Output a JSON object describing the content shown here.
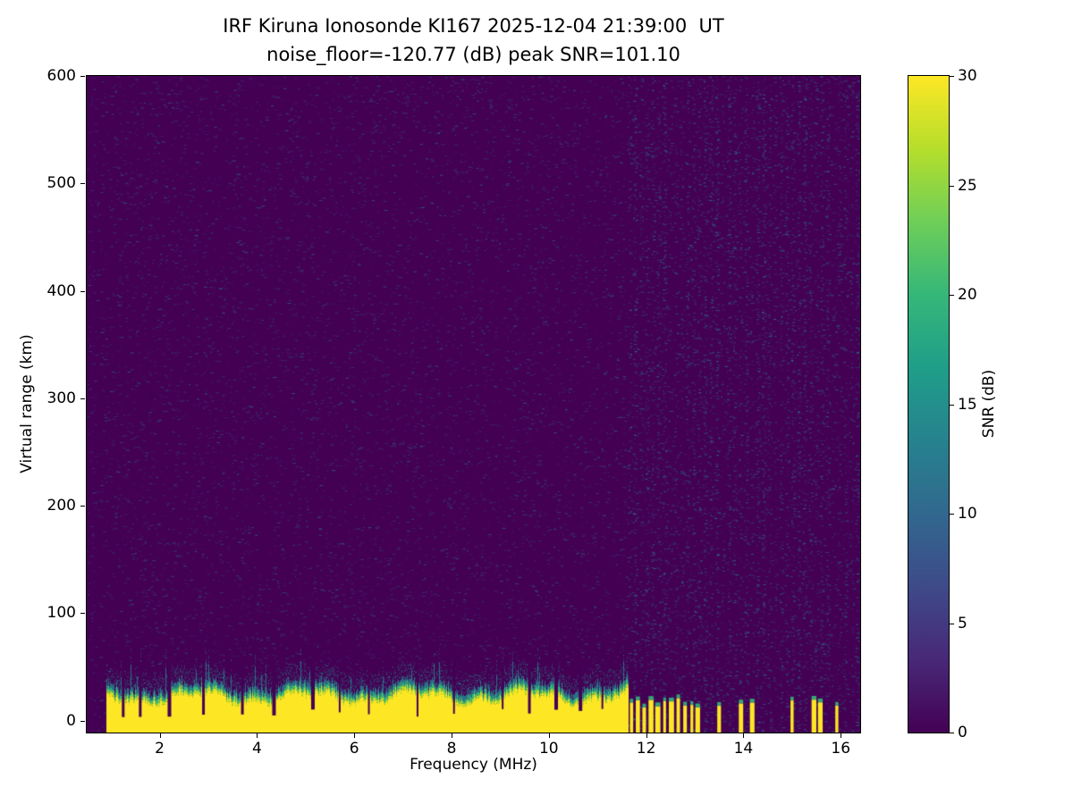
{
  "chart_data": {
    "type": "heatmap",
    "title": "IRF Kiruna Ionosonde KI167 2025-12-04 21:39:00  UT",
    "subtitle": "noise_floor=-120.77 (dB) peak SNR=101.10",
    "station": "IRF Kiruna Ionosonde KI167",
    "timestamp_ut": "2025-12-04 21:39:00",
    "noise_floor_db": -120.77,
    "peak_snr_db": 101.1,
    "xlabel": "Frequency (MHz)",
    "ylabel": "Virtual range (km)",
    "xlim": [
      0.5,
      16.4
    ],
    "ylim": [
      -11,
      600
    ],
    "xticks": [
      2,
      4,
      6,
      8,
      10,
      12,
      14,
      16
    ],
    "yticks": [
      0,
      100,
      200,
      300,
      400,
      500,
      600
    ],
    "grid": false,
    "colorbar": {
      "label": "SNR (dB)",
      "min": 0,
      "max": 30,
      "ticks": [
        0,
        5,
        10,
        15,
        20,
        25,
        30
      ],
      "colormap": "viridis",
      "stops_low_to_high": [
        "#440154",
        "#482878",
        "#3e4a89",
        "#31688e",
        "#26828e",
        "#1f9e89",
        "#35b779",
        "#6ece58",
        "#b5de2b",
        "#fde725"
      ]
    },
    "features": {
      "background_snr_db": 0,
      "speckle_noise": "sparse 1-8 dB blue/teal speckle noise over the entire map",
      "ground_echo_band": {
        "freq_start_mhz": 0.9,
        "freq_end_mhz": 11.62,
        "range_bottom_km": -11,
        "range_top_km_mean": 24,
        "fringe_top_km": 45,
        "snr_db": 30,
        "description": "saturated yellow strong-echo band at low virtual range with ragged green/teal upper fringe"
      },
      "band_notches_mhz": [
        1.25,
        1.6,
        2.2,
        2.9,
        3.7,
        4.35,
        5.15,
        5.7,
        6.3,
        7.3,
        8.05,
        9.05,
        9.6,
        10.15,
        10.65,
        11.1
      ],
      "sparse_echo_columns_mhz": [
        11.7,
        11.83,
        11.96,
        12.1,
        12.24,
        12.38,
        12.52,
        12.66,
        12.8,
        12.94,
        13.06,
        13.5,
        13.95,
        14.18,
        15.0,
        15.45,
        15.58,
        15.92
      ],
      "noise_stripes": {
        "freq_start": 11.65,
        "freq_end": 16.35,
        "spacing_mhz": 0.12,
        "description": "vertical columns of denser speckle noise above ~11.6 MHz"
      }
    }
  }
}
